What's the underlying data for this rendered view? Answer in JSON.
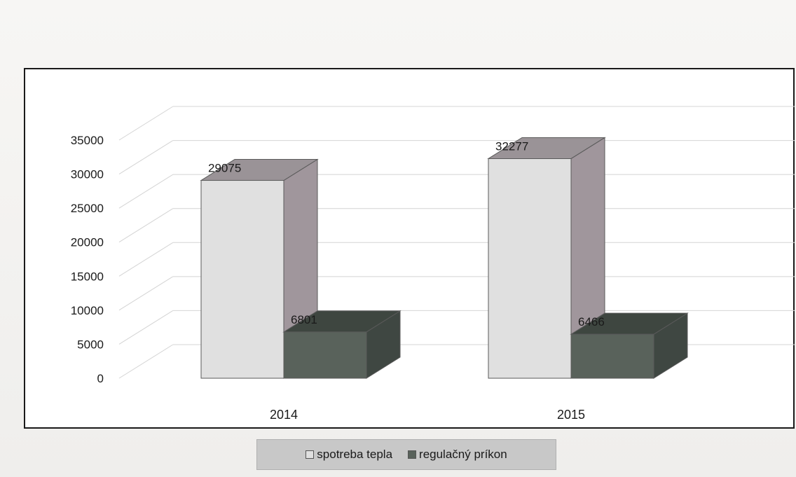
{
  "chart_data": {
    "type": "bar",
    "categories": [
      "2014",
      "2015"
    ],
    "series": [
      {
        "name": "spotreba tepla",
        "values": [
          29075,
          32277
        ]
      },
      {
        "name": "regulačný príkon",
        "values": [
          6801,
          6466
        ]
      }
    ],
    "data_labels": [
      [
        "29075",
        "32277"
      ],
      [
        "6801",
        "6466"
      ]
    ],
    "ylim": [
      0,
      35000
    ],
    "yticks": [
      "35000",
      "30000",
      "25000",
      "20000",
      "15000",
      "10000",
      "5000",
      "0"
    ],
    "grid": true,
    "legend_position": "bottom",
    "colors": {
      "series1": "#e0e0e0",
      "series2": "#59625b"
    }
  }
}
